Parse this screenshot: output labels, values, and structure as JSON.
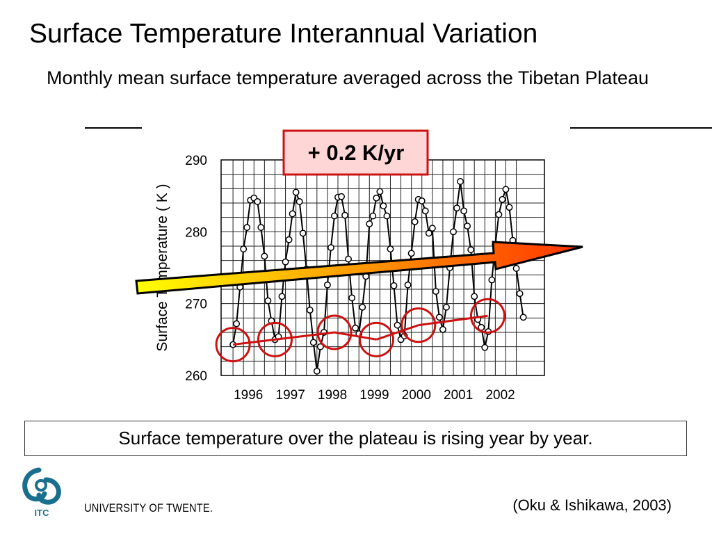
{
  "slide": {
    "title": "Surface Temperature Interannual Variation",
    "subtitle": "Monthly mean surface temperature averaged across the Tibetan Plateau",
    "trend_label": "+ 0.2 K/yr",
    "caption": "Surface temperature over the plateau is rising year by year.",
    "citation": "(Oku & Ishikawa, 2003)",
    "university": "UNIVERSITY OF TWENTE.",
    "logo_text": "ITC"
  },
  "colors": {
    "line": "#000000",
    "grid": "#222222",
    "circle": "#cc1111",
    "trend_box_fill": "#ffd6d6",
    "trend_box_border": "#cc1111",
    "arrow_start": "#ffff00",
    "arrow_end": "#ff3300",
    "logo": "#1a6f8e"
  },
  "chart_data": {
    "type": "line",
    "title": "",
    "xlabel": "",
    "ylabel": "Surface Temperature  ( K )",
    "ylim": [
      260,
      290
    ],
    "xlim": [
      1995.3,
      2003.0
    ],
    "yticks": [
      260,
      270,
      280,
      290
    ],
    "xtick_labels": [
      "1996",
      "1997",
      "1998",
      "1999",
      "2000",
      "2001",
      "2002"
    ],
    "xtick_positions": [
      1995.95,
      1996.95,
      1997.95,
      1998.95,
      1999.95,
      2000.95,
      2001.95
    ],
    "grid": true,
    "series": [
      {
        "x_start": 1995.583,
        "x_step": 0.0833,
        "values": [
          264.3,
          267.2,
          272.3,
          277.6,
          280.6,
          284.4,
          284.7,
          284.2,
          280.6,
          276.6,
          270.4,
          267.6,
          265.0,
          265.4,
          271.0,
          275.8,
          278.9,
          282.5,
          285.5,
          284.2,
          279.8,
          274.8,
          269.1,
          264.6,
          260.6,
          264.0,
          266.0,
          272.6,
          277.8,
          282.2,
          284.8,
          284.9,
          282.3,
          276.2,
          270.8,
          266.6,
          265.8,
          269.5,
          273.8,
          281.1,
          282.2,
          284.7,
          285.6,
          283.6,
          282.2,
          277.6,
          272.5,
          267.0,
          265.0,
          265.5,
          272.6,
          277.0,
          281.4,
          284.5,
          284.3,
          282.9,
          279.8,
          280.5,
          271.7,
          268.1,
          266.4,
          269.5,
          275.0,
          280.0,
          283.3,
          287.0,
          282.9,
          280.8,
          277.5,
          271.0,
          267.8,
          266.7,
          263.9,
          266.1,
          273.3,
          278.2,
          282.4,
          284.5,
          285.9,
          283.4,
          278.8,
          274.9,
          271.4,
          268.1
        ]
      }
    ],
    "highlighted_minima": [
      {
        "x": 1995.583,
        "y": 264.3
      },
      {
        "x": 1996.583,
        "y": 265.0
      },
      {
        "x": 1998.0,
        "y": 266.0
      },
      {
        "x": 1999.0,
        "y": 265.0
      },
      {
        "x": 2000.0,
        "y": 267.0
      },
      {
        "x": 2001.65,
        "y": 268.3
      }
    ]
  }
}
